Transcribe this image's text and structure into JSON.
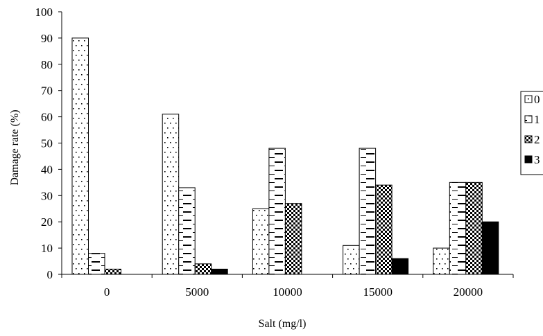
{
  "chart_data": {
    "type": "bar",
    "title": "",
    "xlabel": "Salt (mg/l)",
    "ylabel": "Damage rate (%)",
    "ylim": [
      0,
      100
    ],
    "yticks": [
      0,
      10,
      20,
      30,
      40,
      50,
      60,
      70,
      80,
      90,
      100
    ],
    "categories": [
      "0",
      "5000",
      "10000",
      "15000",
      "20000"
    ],
    "series": [
      {
        "name": "0",
        "pattern": "dots",
        "values": [
          90,
          61,
          25,
          11,
          10
        ]
      },
      {
        "name": "1",
        "pattern": "dashes",
        "values": [
          8,
          33,
          48,
          48,
          35
        ]
      },
      {
        "name": "2",
        "pattern": "checker",
        "values": [
          2,
          4,
          27,
          34,
          35
        ]
      },
      {
        "name": "3",
        "pattern": "solid",
        "values": [
          0,
          2,
          0,
          6,
          20
        ]
      }
    ],
    "grid": false,
    "legend_position": "right (clipped)"
  }
}
